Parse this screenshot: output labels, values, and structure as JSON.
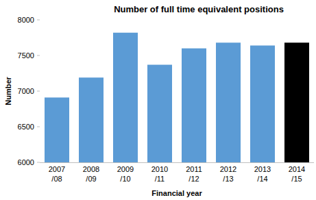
{
  "chart_data": {
    "type": "bar",
    "title": "Number of full time equivalent positions",
    "x_label": "Financial year",
    "y_label": "Number",
    "categories": [
      "2007/08",
      "2008/09",
      "2009/10",
      "2010/11",
      "2011/12",
      "2012/13",
      "2013/14",
      "2014/15"
    ],
    "values": [
      6910,
      7190,
      7820,
      7370,
      7600,
      7680,
      7640,
      7680
    ],
    "colors": [
      "#5b9bd5",
      "#5b9bd5",
      "#5b9bd5",
      "#5b9bd5",
      "#5b9bd5",
      "#5b9bd5",
      "#5b9bd5",
      "#000000"
    ],
    "ylim": [
      6000,
      8000
    ],
    "yticks": [
      6000,
      6500,
      7000,
      7500,
      8000
    ],
    "grid": false
  }
}
